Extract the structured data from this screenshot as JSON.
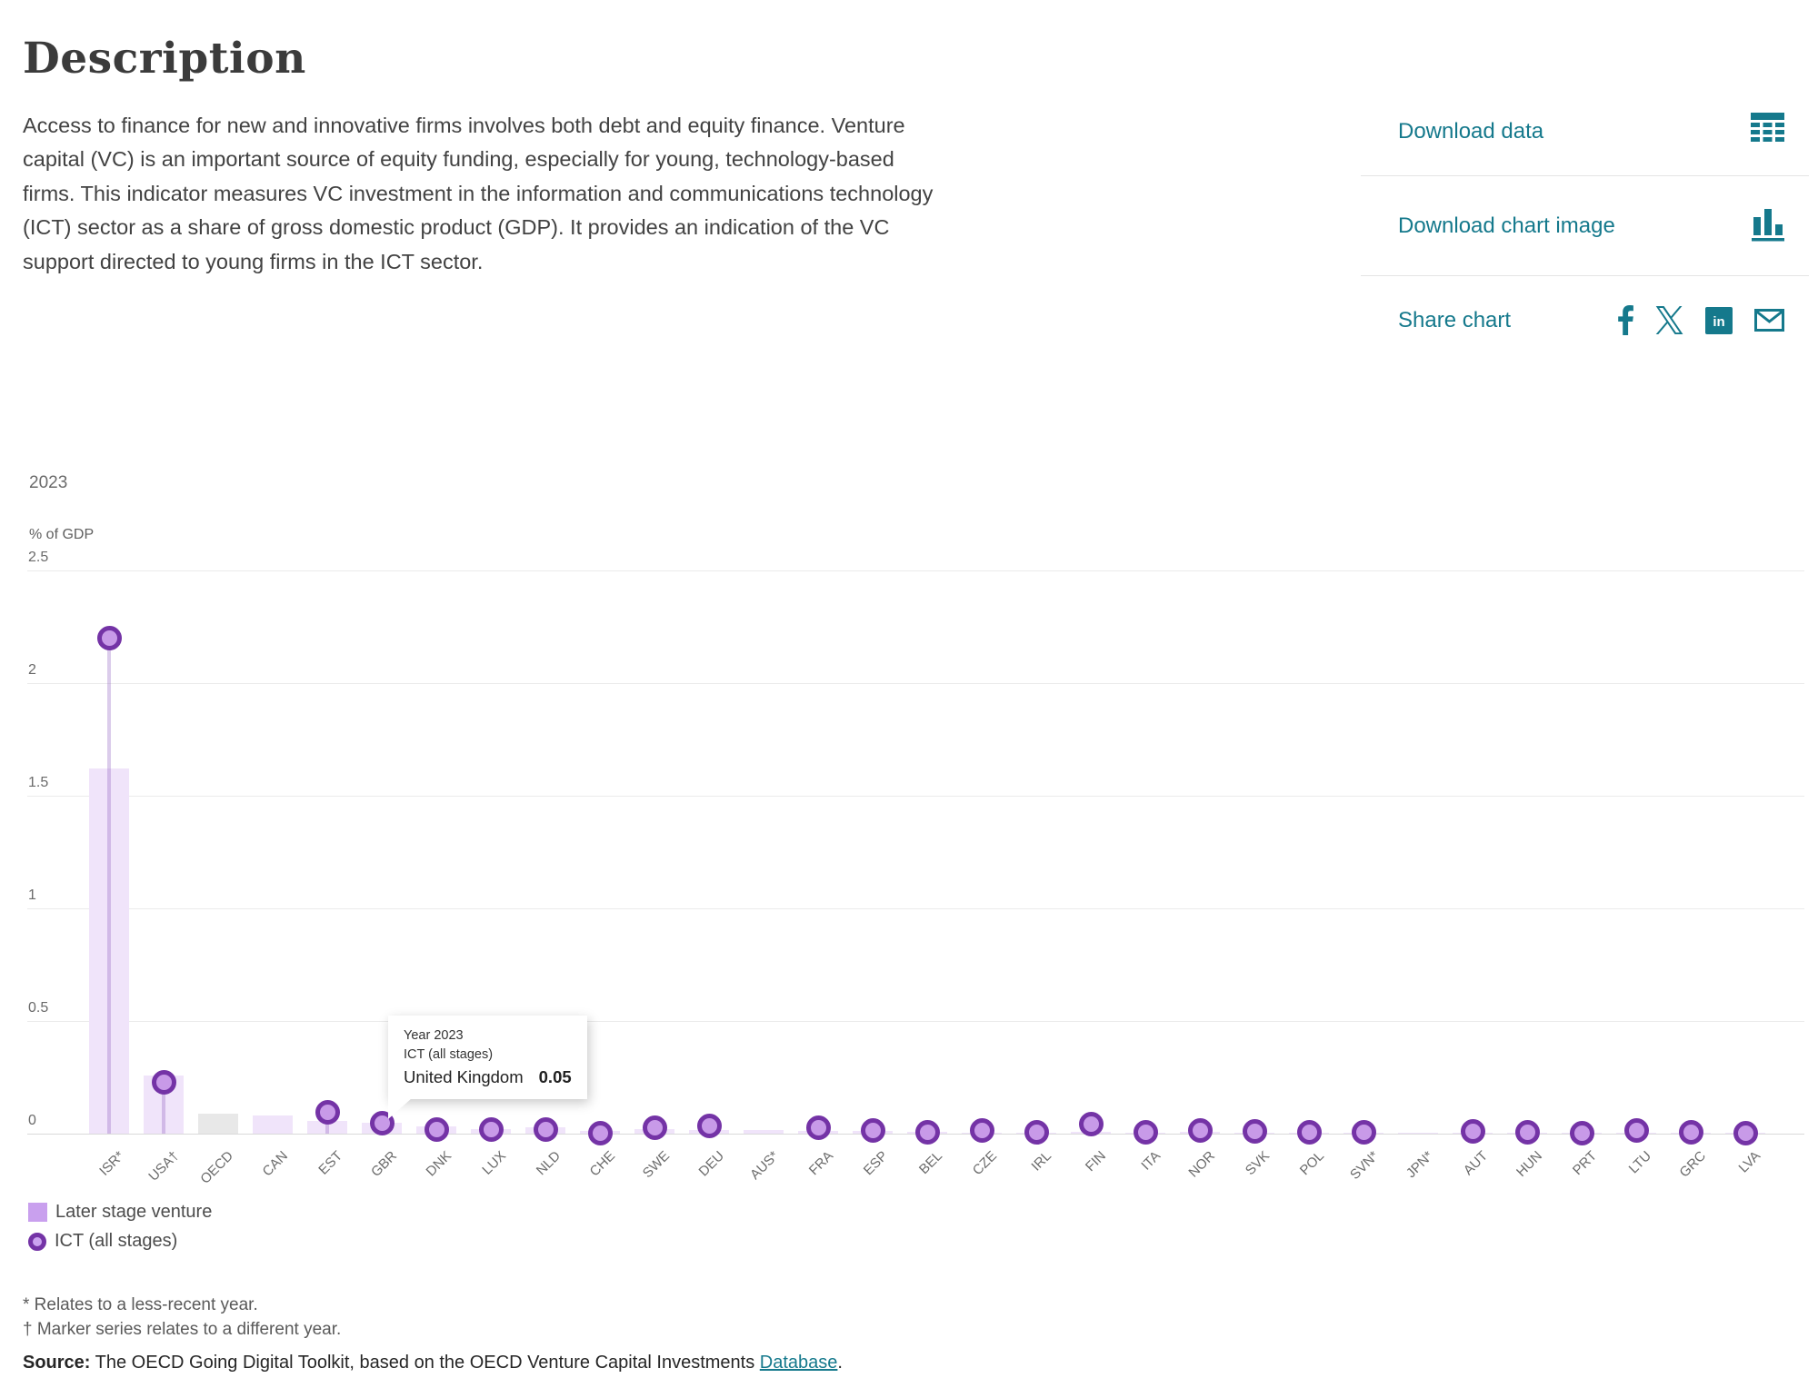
{
  "page": {
    "title": "Description",
    "description": "Access to finance for new and innovative firms involves both debt and equity finance. Venture capital (VC) is an important source of equity funding, especially for young, technology-based firms. This indicator measures VC investment in the information and communications technology (ICT) sector as a share of gross domestic product (GDP). It provides an indication of the VC support directed to young firms in the ICT sector."
  },
  "actions": {
    "download_data": "Download data",
    "download_chart_image": "Download chart image",
    "share_chart": "Share chart",
    "accent_color": "#15798c",
    "social_icons": [
      "facebook-icon",
      "x-icon",
      "linkedin-icon",
      "email-icon"
    ]
  },
  "chart_data": {
    "type": "bar",
    "year_label": "2023",
    "ylabel": "% of GDP",
    "ylim": [
      0,
      2.5
    ],
    "yticks": [
      2.5,
      2,
      1.5,
      1,
      0.5,
      0
    ],
    "grid": true,
    "legend_position": "bottom-left",
    "categories": [
      "ISR*",
      "USA†",
      "OECD",
      "CAN",
      "EST",
      "GBR",
      "DNK",
      "LUX",
      "NLD",
      "CHE",
      "SWE",
      "DEU",
      "AUS*",
      "FRA",
      "ESP",
      "BEL",
      "CZE",
      "IRL",
      "FIN",
      "ITA",
      "NOR",
      "SVK",
      "POL",
      "SVN*",
      "JPN*",
      "AUT",
      "HUN",
      "PRT",
      "LTU",
      "GRC",
      "LVA"
    ],
    "series": [
      {
        "name": "Later stage venture",
        "type": "bar",
        "color": "#f0e4fa",
        "values": [
          1.62,
          0.26,
          0.09,
          0.08,
          0.055,
          0.048,
          0.032,
          0.02,
          0.028,
          0.012,
          0.022,
          0.018,
          0.018,
          0.012,
          0.012,
          0.01,
          0.005,
          0.004,
          0.01,
          0.005,
          0.008,
          0.002,
          0.004,
          0.002,
          0.004,
          0.005,
          0.004,
          0.003,
          0.004,
          0.002,
          0.002
        ]
      },
      {
        "name": "ICT (all stages)",
        "type": "marker",
        "ring_color": "#7433a6",
        "fill_color": "#c89ae8",
        "stem_color": "rgba(143,95,193,0.32)",
        "values": [
          2.2,
          0.23,
          null,
          null,
          0.097,
          0.048,
          0.022,
          0.02,
          0.02,
          0.006,
          0.03,
          0.035,
          null,
          0.028,
          0.018,
          0.01,
          0.018,
          0.01,
          0.045,
          0.01,
          0.018,
          0.012,
          0.01,
          0.008,
          null,
          0.014,
          0.01,
          0.006,
          0.018,
          0.008,
          0.006
        ]
      }
    ],
    "bar_color_overrides": {
      "OECD": "#e8e8e8"
    },
    "tooltip": {
      "line1": "Year 2023",
      "line2": "ICT (all stages)",
      "name": "United Kingdom",
      "value": "0.05"
    }
  },
  "legend": [
    {
      "label": "Later stage venture",
      "swatch": "square"
    },
    {
      "label": "ICT (all stages)",
      "swatch": "circle"
    }
  ],
  "footnotes": [
    "* Relates to a less-recent year.",
    "† Marker series relates to a different year."
  ],
  "source": {
    "label": "Source:",
    "text": " The OECD Going Digital Toolkit, based on the OECD Venture Capital Investments ",
    "link_text": "Database",
    "suffix": "."
  }
}
